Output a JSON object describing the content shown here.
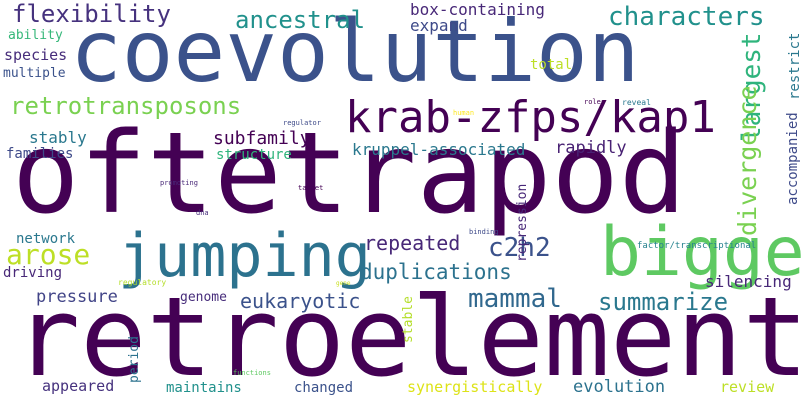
{
  "words": [
    {
      "text": "oftetrapod",
      "color": "#440154"
    },
    {
      "text": "retroelement",
      "color": "#440154"
    },
    {
      "text": "coevolution",
      "color": "#3b528b"
    },
    {
      "text": "krab-zfps/kap1",
      "color": "#440154"
    },
    {
      "text": "jumping",
      "color": "#2c728e"
    },
    {
      "text": "biggest",
      "color": "#5ec962"
    },
    {
      "text": "retrotransposons",
      "color": "#7ad151"
    },
    {
      "text": "flexibility",
      "color": "#46327e"
    },
    {
      "text": "ancestral",
      "color": "#21918c"
    },
    {
      "text": "characters",
      "color": "#21918c"
    },
    {
      "text": "largest",
      "color": "#2fb47c"
    },
    {
      "text": "divergence",
      "color": "#7ad151"
    },
    {
      "text": "mammal",
      "color": "#31688e"
    },
    {
      "text": "c2h2",
      "color": "#3b528b"
    },
    {
      "text": "arose",
      "color": "#bddf26"
    },
    {
      "text": "duplications",
      "color": "#2c728e"
    },
    {
      "text": "summarize",
      "color": "#2a788e"
    },
    {
      "text": "eukaryotic",
      "color": "#3b528b"
    },
    {
      "text": "repeated",
      "color": "#482878"
    },
    {
      "text": "box-containing",
      "color": "#482878"
    },
    {
      "text": "expand",
      "color": "#3e4a89"
    },
    {
      "text": "subfamily",
      "color": "#440154"
    },
    {
      "text": "kruppel-associated",
      "color": "#2a788e"
    },
    {
      "text": "rapidly",
      "color": "#482173"
    },
    {
      "text": "stably",
      "color": "#2a788e"
    },
    {
      "text": "structure",
      "color": "#2fb47c"
    },
    {
      "text": "families",
      "color": "#3e4a89"
    },
    {
      "text": "species",
      "color": "#472d7b"
    },
    {
      "text": "multiple",
      "color": "#3b528b"
    },
    {
      "text": "ability",
      "color": "#35b779"
    },
    {
      "text": "total",
      "color": "#bddf26"
    },
    {
      "text": "restrict",
      "color": "#2a788e"
    },
    {
      "text": "accompanied",
      "color": "#3e4a89"
    },
    {
      "text": "repression",
      "color": "#482878"
    },
    {
      "text": "network",
      "color": "#2a788e"
    },
    {
      "text": "driving",
      "color": "#482878"
    },
    {
      "text": "pressure",
      "color": "#414487"
    },
    {
      "text": "genome",
      "color": "#472d7b"
    },
    {
      "text": "silencing",
      "color": "#482878"
    },
    {
      "text": "stable",
      "color": "#b5de2b"
    },
    {
      "text": "period",
      "color": "#2c728e"
    },
    {
      "text": "appeared",
      "color": "#46327e"
    },
    {
      "text": "maintains",
      "color": "#21918c"
    },
    {
      "text": "changed",
      "color": "#3b528b"
    },
    {
      "text": "synergistically",
      "color": "#dde318"
    },
    {
      "text": "evolution",
      "color": "#2c728e"
    },
    {
      "text": "review",
      "color": "#bddf26"
    },
    {
      "text": "regulator",
      "color": "#3e4a89"
    },
    {
      "text": "human",
      "color": "#fde725"
    },
    {
      "text": "roles",
      "color": "#440154"
    },
    {
      "text": "reveal",
      "color": "#2a788e"
    },
    {
      "text": "promoting",
      "color": "#482878"
    },
    {
      "text": "target",
      "color": "#440154"
    },
    {
      "text": "dna",
      "color": "#472d7b"
    },
    {
      "text": "binding",
      "color": "#3e4a89"
    },
    {
      "text": "factor/transcriptional",
      "color": "#26828e"
    },
    {
      "text": "regulatory",
      "color": "#b5de2b"
    },
    {
      "text": "gene",
      "color": "#c8e020"
    },
    {
      "text": "functions",
      "color": "#5ec962"
    }
  ]
}
